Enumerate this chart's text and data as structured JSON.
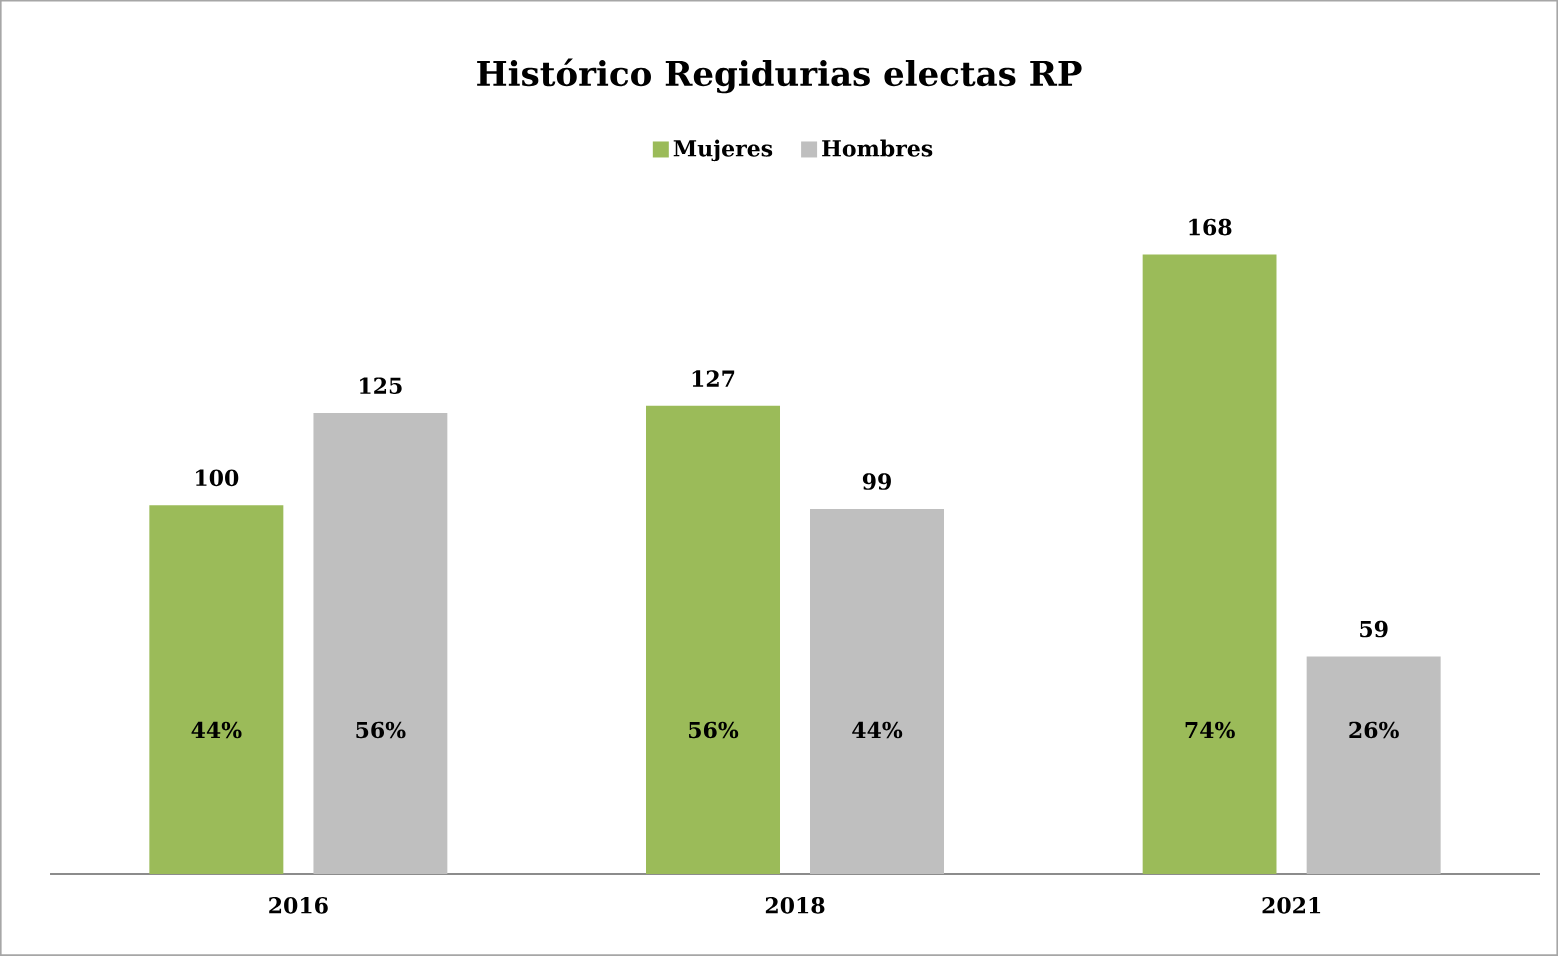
{
  "chart_data": {
    "type": "bar",
    "title": "Histórico Regidurias electas  RP",
    "categories": [
      "2016",
      "2018",
      "2021"
    ],
    "series": [
      {
        "name": "Mujeres",
        "color": "#9bbb59",
        "values": [
          100,
          127,
          168
        ]
      },
      {
        "name": "Hombres",
        "color": "#bfbfbf",
        "values": [
          125,
          99,
          59
        ]
      }
    ],
    "annotations": [
      "44%",
      "56%",
      "74%",
      "56%",
      "44%",
      "26%"
    ],
    "tick_labels": "x",
    "data_labels": true,
    "legend": "top"
  }
}
